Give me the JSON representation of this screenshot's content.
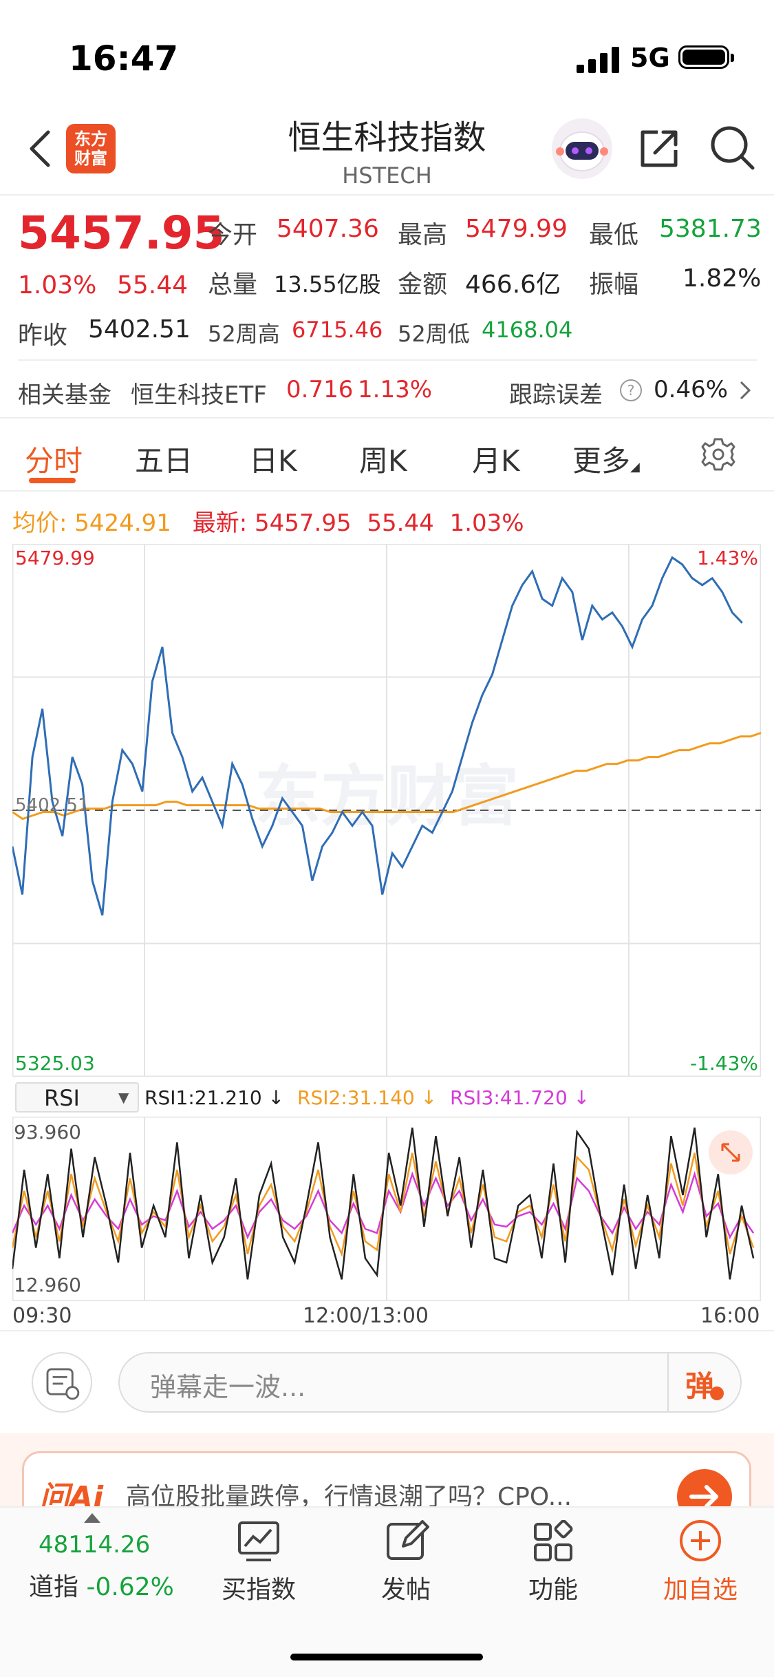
{
  "status_bar": {
    "time": "16:47",
    "network": "5G"
  },
  "header": {
    "logo_line1": "东方",
    "logo_line2": "财富",
    "title": "恒生科技指数",
    "subtitle": "HSTECH"
  },
  "quote": {
    "price": "5457.95",
    "change_pct": "1.03%",
    "change": "55.44",
    "open_label": "今开",
    "open": "5407.36",
    "high_label": "最高",
    "high": "5479.99",
    "low_label": "最低",
    "low": "5381.73",
    "volume_label": "总量",
    "volume": "13.55亿股",
    "amount_label": "金额",
    "amount": "466.6亿",
    "amplitude_label": "振幅",
    "amplitude": "1.82%",
    "prev_close_label": "昨收",
    "prev_close": "5402.51",
    "week52_high_label": "52周高",
    "week52_high": "6715.46",
    "week52_low_label": "52周低",
    "week52_low": "4168.04"
  },
  "fund": {
    "label": "相关基金",
    "name": "恒生科技ETF",
    "price": "0.716",
    "change": "1.13%",
    "tracking_label": "跟踪误差",
    "tracking_value": "0.46%"
  },
  "tabs": [
    "分时",
    "五日",
    "日K",
    "周K",
    "月K",
    "更多"
  ],
  "avg_row": {
    "avg_label": "均价:",
    "avg_value": "5424.91",
    "latest_label": "最新:",
    "latest_value": "5457.95",
    "latest_change": "55.44",
    "latest_pct": "1.03%"
  },
  "chart_data": {
    "type": "line",
    "y_labels": {
      "top": "5479.99",
      "mid": "5402.51",
      "bottom": "5325.03",
      "top_pct": "1.43%",
      "bottom_pct": "-1.43%"
    },
    "ylim": [
      5325.03,
      5479.99
    ],
    "prev_close": 5402.51,
    "watermark": "东方财富",
    "x_ticks": [
      "09:30",
      "12:00/13:00",
      "16:00"
    ],
    "colors": {
      "price": "#2f6db5",
      "avg": "#f29b1e"
    },
    "price": [
      5392,
      5378,
      5418,
      5432,
      5405,
      5395,
      5418,
      5410,
      5382,
      5372,
      5405,
      5420,
      5416,
      5408,
      5440,
      5450,
      5425,
      5418,
      5408,
      5412,
      5405,
      5398,
      5416,
      5410,
      5400,
      5392,
      5398,
      5406,
      5402,
      5398,
      5382,
      5392,
      5396,
      5402,
      5398,
      5402,
      5398,
      5378,
      5390,
      5386,
      5392,
      5398,
      5396,
      5402,
      5408,
      5418,
      5428,
      5436,
      5442,
      5452,
      5462,
      5468,
      5472,
      5464,
      5462,
      5470,
      5466,
      5452,
      5462,
      5458,
      5460,
      5456,
      5450,
      5458,
      5462,
      5470,
      5476,
      5474,
      5470,
      5468,
      5470,
      5466,
      5460,
      5457
    ],
    "avg": [
      5402,
      5400,
      5401,
      5402,
      5402,
      5401,
      5402,
      5403,
      5403,
      5403,
      5404,
      5404,
      5404,
      5404,
      5404,
      5405,
      5405,
      5404,
      5404,
      5404,
      5404,
      5404,
      5404,
      5404,
      5403,
      5403,
      5403,
      5403,
      5403,
      5403,
      5403,
      5402,
      5402,
      5402,
      5402,
      5402,
      5402,
      5402,
      5402,
      5402,
      5402,
      5402,
      5402,
      5402,
      5403,
      5404,
      5405,
      5406,
      5407,
      5408,
      5409,
      5410,
      5411,
      5412,
      5413,
      5414,
      5414,
      5415,
      5416,
      5416,
      5417,
      5417,
      5418,
      5418,
      5419,
      5420,
      5420,
      5421,
      5422,
      5422,
      5423,
      5424,
      5424,
      5425
    ],
    "rsi": {
      "label": "RSI",
      "legend": [
        {
          "name": "RSI1",
          "value": "21.210",
          "color": "#222222"
        },
        {
          "name": "RSI2",
          "value": "31.140",
          "color": "#f29b1e"
        },
        {
          "name": "RSI3",
          "value": "41.720",
          "color": "#d63ad9"
        }
      ],
      "y_labels": {
        "top": "93.960",
        "bottom": "12.960"
      },
      "ylim": [
        12.96,
        93.96
      ],
      "rsi1": [
        25,
        72,
        35,
        70,
        30,
        82,
        40,
        78,
        55,
        28,
        80,
        35,
        55,
        40,
        85,
        30,
        60,
        28,
        40,
        68,
        20,
        60,
        75,
        40,
        28,
        55,
        85,
        40,
        20,
        70,
        30,
        22,
        80,
        55,
        92,
        45,
        88,
        50,
        78,
        35,
        72,
        30,
        28,
        55,
        60,
        30,
        75,
        28,
        90,
        82,
        50,
        22,
        65,
        25,
        60,
        30,
        88,
        60,
        92,
        40,
        70,
        20,
        55,
        30
      ],
      "rsi2": [
        35,
        62,
        40,
        62,
        38,
        70,
        45,
        68,
        52,
        38,
        68,
        42,
        52,
        45,
        72,
        40,
        55,
        38,
        45,
        60,
        32,
        55,
        65,
        45,
        38,
        52,
        72,
        45,
        32,
        62,
        38,
        34,
        70,
        52,
        80,
        50,
        76,
        52,
        68,
        42,
        65,
        40,
        38,
        52,
        55,
        40,
        65,
        38,
        78,
        72,
        50,
        34,
        58,
        36,
        55,
        40,
        75,
        55,
        80,
        45,
        62,
        32,
        50,
        35
      ],
      "rsi3": [
        42,
        55,
        46,
        55,
        44,
        60,
        48,
        58,
        50,
        44,
        58,
        46,
        50,
        48,
        62,
        45,
        52,
        44,
        48,
        55,
        40,
        52,
        58,
        48,
        44,
        50,
        62,
        48,
        42,
        56,
        44,
        42,
        62,
        52,
        70,
        55,
        68,
        55,
        62,
        48,
        58,
        46,
        45,
        50,
        52,
        46,
        56,
        44,
        68,
        62,
        50,
        42,
        54,
        44,
        52,
        46,
        65,
        52,
        70,
        50,
        56,
        40,
        50,
        42
      ]
    }
  },
  "danmu": {
    "placeholder": "弹幕走一波...",
    "button": "弹"
  },
  "ai_bar": {
    "brand": "问Ai",
    "text": "高位股批量跌停，行情退潮了吗？CPO..."
  },
  "bottom_nav": {
    "dow_value": "48114.26",
    "dow_label": "道指",
    "dow_change": "-0.62%",
    "items": [
      "买指数",
      "发帖",
      "功能",
      "加自选"
    ]
  }
}
